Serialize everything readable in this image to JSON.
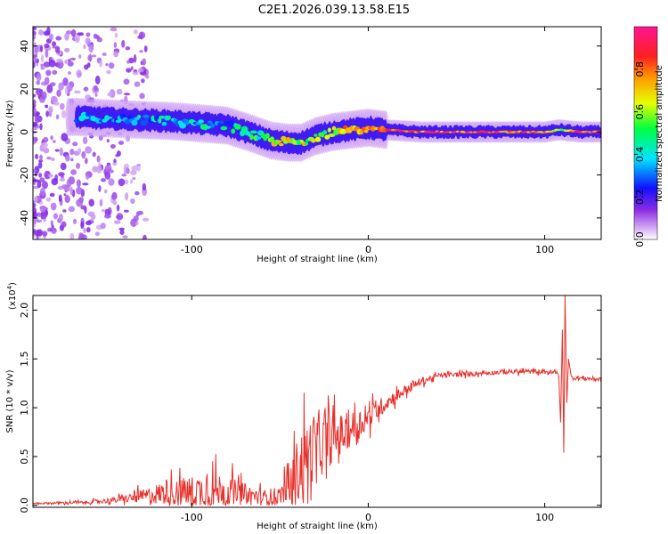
{
  "title": "C2E1.2026.039.13.58.E15",
  "chart_data": [
    {
      "type": "heatmap",
      "name": "spectrogram",
      "xlabel": "Height of straight line (km)",
      "ylabel": "Frequency (Hz)",
      "xlim": [
        -190,
        132
      ],
      "ylim": [
        -50,
        49
      ],
      "xticks": [
        -100,
        0,
        100
      ],
      "xtick_labels": [
        "-100",
        "0",
        "100"
      ],
      "yticks": [
        -40,
        -20,
        0,
        20,
        40
      ],
      "ytick_labels": [
        "-40",
        "-20",
        "0",
        "20",
        "40"
      ],
      "colorbar": {
        "label": "Normalized spectral amplitude",
        "range": [
          0,
          1
        ],
        "ticks": [
          0.0,
          0.2,
          0.4,
          0.6,
          0.8
        ],
        "tick_labels": [
          "0.0",
          "0.2",
          "0.4",
          "0.6",
          "0.8"
        ]
      },
      "ridge": {
        "x": [
          -165,
          -140,
          -110,
          -80,
          -65,
          -55,
          -45,
          -38,
          -30,
          -20,
          -10,
          0,
          10,
          30,
          60,
          100,
          108,
          120,
          132
        ],
        "freq_hz": [
          7,
          6,
          5,
          3,
          -1,
          -4,
          -5,
          -5,
          -2,
          0,
          1,
          2,
          1,
          0,
          0,
          0,
          1,
          0,
          0
        ],
        "amplitude": [
          0.25,
          0.3,
          0.35,
          0.35,
          0.4,
          0.55,
          0.7,
          0.6,
          0.55,
          0.65,
          0.75,
          0.7,
          0.8,
          0.85,
          0.85,
          0.8,
          0.6,
          0.85,
          0.85
        ]
      }
    },
    {
      "type": "line",
      "name": "snr",
      "xlabel": "Height of straight line (km)",
      "ylabel": "SNR (10 * v/v)",
      "y_multiplier": "(x10",
      "y_multiplier_exp": "4",
      "y_multiplier_close": ")",
      "xlim": [
        -190,
        132
      ],
      "ylim": [
        -0.02,
        2.15
      ],
      "xticks": [
        -100,
        0,
        100
      ],
      "xtick_labels": [
        "-100",
        "0",
        "100"
      ],
      "yticks": [
        0.0,
        0.5,
        1.0,
        1.5,
        2.0
      ],
      "ytick_labels": [
        "0.0",
        "0.5",
        "1.0",
        "1.5",
        "2.0"
      ],
      "color": "#e8302a",
      "envelope": {
        "x": [
          -190,
          -160,
          -140,
          -125,
          -115,
          -95,
          -85,
          -75,
          -60,
          -50,
          -44,
          -41,
          -38,
          -35,
          -30,
          -25,
          -20,
          -10,
          0,
          10,
          20,
          30,
          40,
          60,
          80,
          100,
          105
        ],
        "base": [
          0.02,
          0.03,
          0.06,
          0.1,
          0.13,
          0.14,
          0.14,
          0.12,
          0.08,
          0.1,
          0.2,
          0.3,
          0.4,
          0.5,
          0.58,
          0.62,
          0.68,
          0.78,
          0.9,
          1.05,
          1.17,
          1.27,
          1.33,
          1.35,
          1.37,
          1.37,
          1.36
        ],
        "noise": [
          0.01,
          0.02,
          0.04,
          0.1,
          0.16,
          0.22,
          0.26,
          0.18,
          0.1,
          0.12,
          0.3,
          0.42,
          0.5,
          0.48,
          0.42,
          0.36,
          0.3,
          0.22,
          0.16,
          0.1,
          0.07,
          0.05,
          0.03,
          0.03,
          0.03,
          0.03,
          0.03
        ]
      },
      "spikes": [
        {
          "x": 108,
          "y": 1.32
        },
        {
          "x": 109,
          "y": 0.85
        },
        {
          "x": 110,
          "y": 1.8
        },
        {
          "x": 110.8,
          "y": 0.54
        },
        {
          "x": 111.5,
          "y": 2.15
        },
        {
          "x": 112.5,
          "y": 1.05
        },
        {
          "x": 113.5,
          "y": 1.5
        }
      ],
      "tail": {
        "x": [
          115,
          132
        ],
        "y": [
          1.31,
          1.29
        ]
      }
    }
  ]
}
